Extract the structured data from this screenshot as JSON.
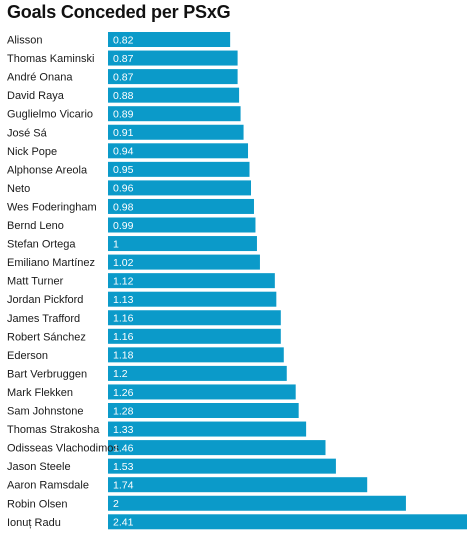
{
  "chart_data": {
    "type": "bar",
    "orientation": "horizontal",
    "title": "Goals Conceded per PSxG",
    "categories": [
      "Alisson",
      "Thomas Kaminski",
      "André Onana",
      "David Raya",
      "Guglielmo Vicario",
      "José Sá",
      "Nick Pope",
      "Alphonse Areola",
      "Neto",
      "Wes Foderingham",
      "Bernd Leno",
      "Stefan Ortega",
      "Emiliano Martínez",
      "Matt Turner",
      "Jordan Pickford",
      "James Trafford",
      "Robert Sánchez",
      "Ederson",
      "Bart Verbruggen",
      "Mark Flekken",
      "Sam Johnstone",
      "Thomas Strakosha",
      "Odisseas Vlachodimos",
      "Jason Steele",
      "Aaron Ramsdale",
      "Robin Olsen",
      "Ionuț Radu"
    ],
    "values": [
      0.82,
      0.87,
      0.87,
      0.88,
      0.89,
      0.91,
      0.94,
      0.95,
      0.96,
      0.98,
      0.99,
      1,
      1.02,
      1.12,
      1.13,
      1.16,
      1.16,
      1.18,
      1.2,
      1.26,
      1.28,
      1.33,
      1.46,
      1.53,
      1.74,
      2,
      2.41
    ],
    "value_labels": [
      "0.82",
      "0.87",
      "0.87",
      "0.88",
      "0.89",
      "0.91",
      "0.94",
      "0.95",
      "0.96",
      "0.98",
      "0.99",
      "1",
      "1.02",
      "1.12",
      "1.13",
      "1.16",
      "1.16",
      "1.18",
      "1.2",
      "1.26",
      "1.28",
      "1.33",
      "1.46",
      "1.53",
      "1.74",
      "2",
      "2.41"
    ],
    "xlim": [
      0,
      2.41
    ],
    "bar_color": "#0b9ac9",
    "grid": false,
    "legend": "none"
  }
}
